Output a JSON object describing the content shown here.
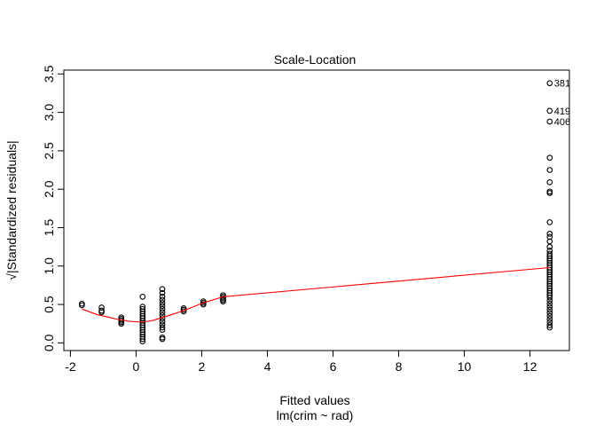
{
  "chart_data": {
    "type": "scatter",
    "title": "Scale-Location",
    "xlabel": "Fitted values",
    "sublabel": "lm(crim ~ rad)",
    "ylabel": "√|Standardized residuals|",
    "xlim": [
      -2.2,
      13.2
    ],
    "ylim": [
      -0.1,
      3.55
    ],
    "xticks": [
      -2,
      0,
      2,
      4,
      6,
      8,
      10,
      12
    ],
    "yticks": [
      0.0,
      0.5,
      1.0,
      1.5,
      2.0,
      2.5,
      3.0,
      3.5
    ],
    "xtick_labels": [
      "-2",
      "0",
      "2",
      "4",
      "6",
      "8",
      "10",
      "12"
    ],
    "ytick_labels": [
      "0.0",
      "0.5",
      "1.0",
      "1.5",
      "2.0",
      "2.5",
      "3.0",
      "3.5"
    ],
    "colors": {
      "points": "#000000",
      "smoother": "#ff0000"
    },
    "points": [
      [
        -1.65,
        0.51
      ],
      [
        -1.65,
        0.49
      ],
      [
        -1.05,
        0.46
      ],
      [
        -1.05,
        0.42
      ],
      [
        -1.05,
        0.4
      ],
      [
        -0.45,
        0.33
      ],
      [
        -0.45,
        0.31
      ],
      [
        -0.45,
        0.29
      ],
      [
        -0.45,
        0.27
      ],
      [
        -0.45,
        0.25
      ],
      [
        0.2,
        0.6
      ],
      [
        0.2,
        0.47
      ],
      [
        0.2,
        0.44
      ],
      [
        0.2,
        0.41
      ],
      [
        0.2,
        0.38
      ],
      [
        0.2,
        0.35
      ],
      [
        0.2,
        0.32
      ],
      [
        0.2,
        0.29
      ],
      [
        0.2,
        0.26
      ],
      [
        0.2,
        0.23
      ],
      [
        0.2,
        0.2
      ],
      [
        0.2,
        0.17
      ],
      [
        0.2,
        0.14
      ],
      [
        0.2,
        0.11
      ],
      [
        0.2,
        0.08
      ],
      [
        0.2,
        0.05
      ],
      [
        0.2,
        0.02
      ],
      [
        0.8,
        0.7
      ],
      [
        0.8,
        0.65
      ],
      [
        0.8,
        0.6
      ],
      [
        0.8,
        0.56
      ],
      [
        0.8,
        0.52
      ],
      [
        0.8,
        0.48
      ],
      [
        0.8,
        0.44
      ],
      [
        0.8,
        0.4
      ],
      [
        0.8,
        0.36
      ],
      [
        0.8,
        0.32
      ],
      [
        0.8,
        0.28
      ],
      [
        0.8,
        0.24
      ],
      [
        0.8,
        0.2
      ],
      [
        0.8,
        0.17
      ],
      [
        0.8,
        0.07
      ],
      [
        0.8,
        0.05
      ],
      [
        1.45,
        0.45
      ],
      [
        1.45,
        0.43
      ],
      [
        1.45,
        0.41
      ],
      [
        2.05,
        0.54
      ],
      [
        2.05,
        0.52
      ],
      [
        2.05,
        0.5
      ],
      [
        2.65,
        0.62
      ],
      [
        2.65,
        0.6
      ],
      [
        2.65,
        0.58
      ],
      [
        2.65,
        0.56
      ],
      [
        2.65,
        0.54
      ],
      [
        12.6,
        3.38
      ],
      [
        12.6,
        3.02
      ],
      [
        12.6,
        2.88
      ],
      [
        12.6,
        2.41
      ],
      [
        12.6,
        2.25
      ],
      [
        12.6,
        2.09
      ],
      [
        12.6,
        1.97
      ],
      [
        12.6,
        1.95
      ],
      [
        12.6,
        1.57
      ],
      [
        12.6,
        1.42
      ],
      [
        12.6,
        1.38
      ],
      [
        12.6,
        1.32
      ],
      [
        12.6,
        1.25
      ],
      [
        12.6,
        1.2
      ],
      [
        12.6,
        1.16
      ],
      [
        12.6,
        1.13
      ],
      [
        12.6,
        1.1
      ],
      [
        12.6,
        1.07
      ],
      [
        12.6,
        1.04
      ],
      [
        12.6,
        1.01
      ],
      [
        12.6,
        0.98
      ],
      [
        12.6,
        0.95
      ],
      [
        12.6,
        0.92
      ],
      [
        12.6,
        0.89
      ],
      [
        12.6,
        0.86
      ],
      [
        12.6,
        0.83
      ],
      [
        12.6,
        0.8
      ],
      [
        12.6,
        0.77
      ],
      [
        12.6,
        0.74
      ],
      [
        12.6,
        0.71
      ],
      [
        12.6,
        0.68
      ],
      [
        12.6,
        0.65
      ],
      [
        12.6,
        0.62
      ],
      [
        12.6,
        0.59
      ],
      [
        12.6,
        0.55
      ],
      [
        12.6,
        0.51
      ],
      [
        12.6,
        0.47
      ],
      [
        12.6,
        0.43
      ],
      [
        12.6,
        0.39
      ],
      [
        12.6,
        0.35
      ],
      [
        12.6,
        0.31
      ],
      [
        12.6,
        0.27
      ],
      [
        12.6,
        0.23
      ],
      [
        12.6,
        0.2
      ]
    ],
    "point_labels": [
      {
        "x": 12.6,
        "y": 3.38,
        "text": "381"
      },
      {
        "x": 12.6,
        "y": 3.02,
        "text": "419"
      },
      {
        "x": 12.6,
        "y": 2.88,
        "text": "406"
      }
    ],
    "smoother": [
      [
        -1.65,
        0.44
      ],
      [
        -1.2,
        0.37
      ],
      [
        -0.6,
        0.31
      ],
      [
        -0.2,
        0.28
      ],
      [
        0.2,
        0.27
      ],
      [
        0.5,
        0.29
      ],
      [
        0.8,
        0.33
      ],
      [
        1.1,
        0.37
      ],
      [
        1.45,
        0.42
      ],
      [
        2.05,
        0.52
      ],
      [
        2.65,
        0.6
      ],
      [
        12.6,
        0.98
      ]
    ]
  }
}
